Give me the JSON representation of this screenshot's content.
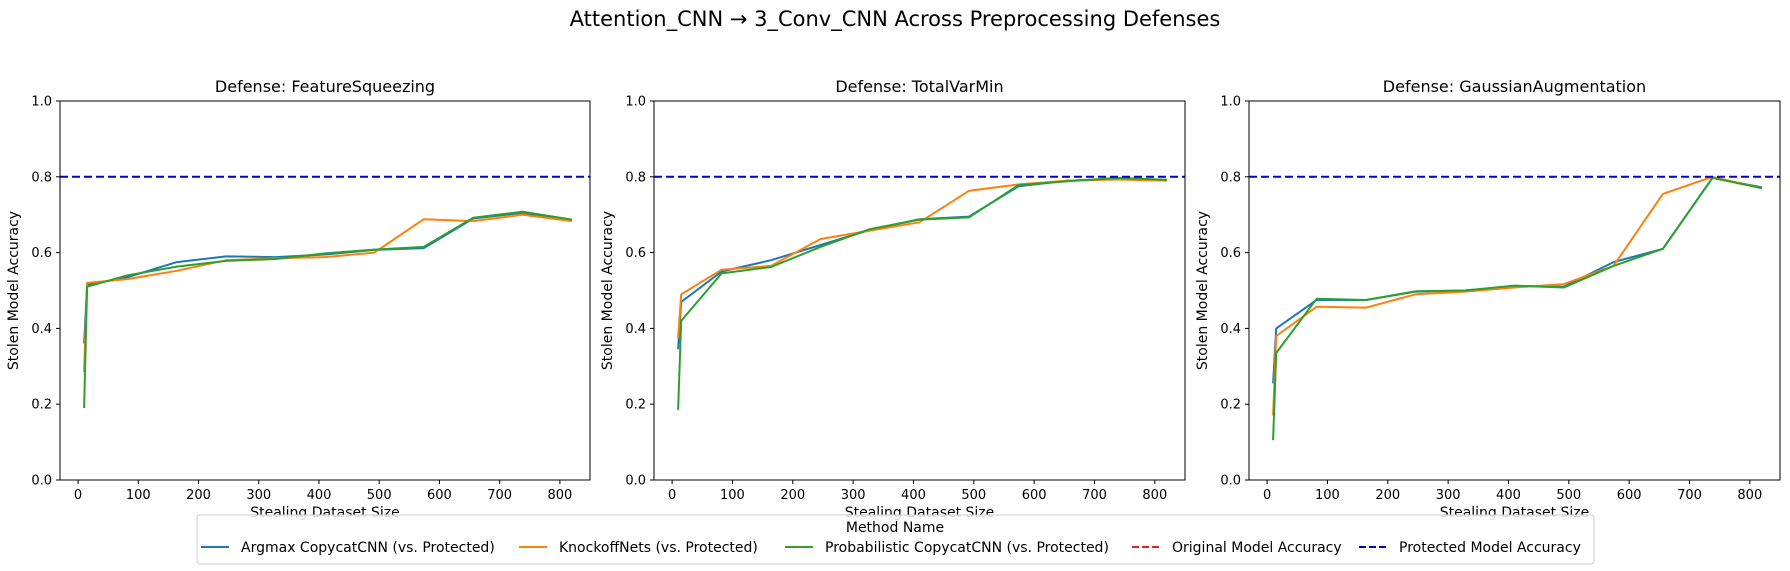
{
  "figure": {
    "suptitle": "Attention_CNN → 3_Conv_CNN Across Preprocessing Defenses"
  },
  "colors": {
    "argmax": "#1f77b4",
    "knockoff": "#ff7f0e",
    "probabilistic": "#2ca02c",
    "original_line": "#d62728",
    "protected_line": "#0000cc"
  },
  "legend": {
    "title": "Method Name",
    "entries": [
      {
        "label": "Argmax CopycatCNN (vs. Protected)",
        "style": "solid",
        "color_key": "argmax"
      },
      {
        "label": "KnockoffNets (vs. Protected)",
        "style": "solid",
        "color_key": "knockoff"
      },
      {
        "label": "Probabilistic CopycatCNN (vs. Protected)",
        "style": "solid",
        "color_key": "probabilistic"
      },
      {
        "label": "Original Model Accuracy",
        "style": "dashed",
        "color_key": "original_line"
      },
      {
        "label": "Protected Model Accuracy",
        "style": "dashed",
        "color_key": "protected_line"
      }
    ]
  },
  "chart_data": [
    {
      "type": "line",
      "title": "Defense: FeatureSqueezing",
      "xlabel": "Stealing Dataset Size",
      "ylabel": "Stolen Model Accuracy",
      "xlim": [
        -30,
        850
      ],
      "ylim": [
        0,
        1
      ],
      "xticks": [
        0,
        100,
        200,
        300,
        400,
        500,
        600,
        700,
        800
      ],
      "yticks": [
        "0.0",
        "0.2",
        "0.4",
        "0.6",
        "0.8",
        "1.0"
      ],
      "protected_accuracy": 0.8,
      "series": [
        {
          "name": "Argmax CopycatCNN (vs. Protected)",
          "color_key": "argmax",
          "x": [
            10,
            15,
            82,
            164,
            246,
            328,
            410,
            492,
            574,
            656,
            738,
            820
          ],
          "y": [
            0.36,
            0.515,
            0.535,
            0.575,
            0.59,
            0.588,
            0.595,
            0.607,
            0.612,
            0.69,
            0.705,
            0.685
          ]
        },
        {
          "name": "KnockoffNets (vs. Protected)",
          "color_key": "knockoff",
          "x": [
            10,
            15,
            82,
            164,
            246,
            328,
            410,
            492,
            574,
            656,
            738,
            820
          ],
          "y": [
            0.285,
            0.52,
            0.53,
            0.552,
            0.58,
            0.585,
            0.588,
            0.6,
            0.688,
            0.683,
            0.7,
            0.683
          ]
        },
        {
          "name": "Probabilistic CopycatCNN (vs. Protected)",
          "color_key": "probabilistic",
          "x": [
            10,
            15,
            82,
            164,
            246,
            328,
            410,
            492,
            574,
            656,
            738,
            820
          ],
          "y": [
            0.19,
            0.51,
            0.54,
            0.563,
            0.578,
            0.583,
            0.598,
            0.608,
            0.615,
            0.692,
            0.708,
            0.687
          ]
        }
      ]
    },
    {
      "type": "line",
      "title": "Defense: TotalVarMin",
      "xlabel": "Stealing Dataset Size",
      "ylabel": "Stolen Model Accuracy",
      "xlim": [
        -30,
        850
      ],
      "ylim": [
        0,
        1
      ],
      "xticks": [
        0,
        100,
        200,
        300,
        400,
        500,
        600,
        700,
        800
      ],
      "yticks": [
        "0.0",
        "0.2",
        "0.4",
        "0.6",
        "0.8",
        "1.0"
      ],
      "protected_accuracy": 0.8,
      "series": [
        {
          "name": "Argmax CopycatCNN (vs. Protected)",
          "color_key": "argmax",
          "x": [
            10,
            15,
            82,
            164,
            246,
            328,
            410,
            492,
            574,
            656,
            738,
            820
          ],
          "y": [
            0.345,
            0.47,
            0.55,
            0.58,
            0.62,
            0.66,
            0.688,
            0.695,
            0.775,
            0.79,
            0.795,
            0.79
          ]
        },
        {
          "name": "KnockoffNets (vs. Protected)",
          "color_key": "knockoff",
          "x": [
            10,
            15,
            82,
            164,
            246,
            328,
            410,
            492,
            574,
            656,
            738,
            820
          ],
          "y": [
            0.375,
            0.49,
            0.555,
            0.565,
            0.636,
            0.658,
            0.68,
            0.763,
            0.78,
            0.79,
            0.793,
            0.79
          ]
        },
        {
          "name": "Probabilistic CopycatCNN (vs. Protected)",
          "color_key": "probabilistic",
          "x": [
            10,
            15,
            82,
            164,
            246,
            328,
            410,
            492,
            574,
            656,
            738,
            820
          ],
          "y": [
            0.185,
            0.42,
            0.545,
            0.562,
            0.615,
            0.662,
            0.687,
            0.693,
            0.778,
            0.788,
            0.797,
            0.792
          ]
        }
      ]
    },
    {
      "type": "line",
      "title": "Defense: GaussianAugmentation",
      "xlabel": "Stealing Dataset Size",
      "ylabel": "Stolen Model Accuracy",
      "xlim": [
        -30,
        850
      ],
      "ylim": [
        0,
        1
      ],
      "xticks": [
        0,
        100,
        200,
        300,
        400,
        500,
        600,
        700,
        800
      ],
      "yticks": [
        "0.0",
        "0.2",
        "0.4",
        "0.6",
        "0.8",
        "1.0"
      ],
      "protected_accuracy": 0.8,
      "series": [
        {
          "name": "Argmax CopycatCNN (vs. Protected)",
          "color_key": "argmax",
          "x": [
            10,
            15,
            82,
            164,
            246,
            328,
            410,
            492,
            574,
            656,
            738,
            820
          ],
          "y": [
            0.255,
            0.4,
            0.475,
            0.475,
            0.497,
            0.5,
            0.512,
            0.51,
            0.575,
            0.61,
            0.797,
            0.772
          ]
        },
        {
          "name": "KnockoffNets (vs. Protected)",
          "color_key": "knockoff",
          "x": [
            10,
            15,
            82,
            164,
            246,
            328,
            410,
            492,
            574,
            656,
            738,
            820
          ],
          "y": [
            0.17,
            0.38,
            0.457,
            0.455,
            0.49,
            0.497,
            0.508,
            0.517,
            0.565,
            0.755,
            0.8,
            0.77
          ]
        },
        {
          "name": "Probabilistic CopycatCNN (vs. Protected)",
          "color_key": "probabilistic",
          "x": [
            10,
            15,
            82,
            164,
            246,
            328,
            410,
            492,
            574,
            656,
            738,
            820
          ],
          "y": [
            0.105,
            0.335,
            0.478,
            0.475,
            0.498,
            0.5,
            0.513,
            0.508,
            0.565,
            0.61,
            0.797,
            0.77
          ]
        }
      ]
    }
  ]
}
